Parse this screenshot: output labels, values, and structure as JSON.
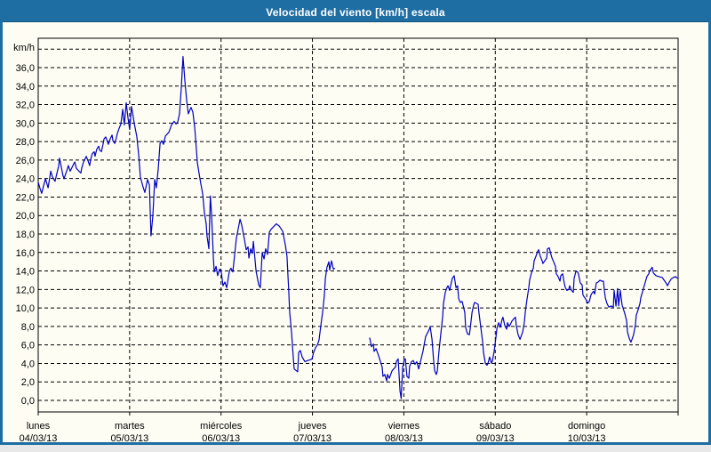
{
  "window": {
    "title": "Velocidad del viento [km/h] escala",
    "titlebar_color": "#1e6da3",
    "background_color": "#fdfdf4"
  },
  "chart_data": {
    "type": "line",
    "title": "Velocidad del viento [km/h] escala",
    "ylabel": "km/h",
    "series_name": "Velocidad del viento",
    "line_color": "#0000c0",
    "grid": true,
    "grid_style": "dashed-black",
    "legend_position": "none",
    "y_axis": {
      "ylim": [
        0,
        38
      ],
      "tick_step": 2,
      "tick_labels": [
        "0,0",
        "2,0",
        "4,0",
        "6,0",
        "8,0",
        "10,0",
        "12,0",
        "14,0",
        "16,0",
        "18,0",
        "20,0",
        "22,0",
        "24,0",
        "26,0",
        "28,0",
        "30,0",
        "32,0",
        "34,0",
        "36,0"
      ],
      "unit_label": "km/h"
    },
    "x_axis": {
      "hours_total": 168,
      "day_width_hours": 24,
      "days": [
        {
          "name": "lunes",
          "date": "04/03/13"
        },
        {
          "name": "martes",
          "date": "05/03/13"
        },
        {
          "name": "miércoles",
          "date": "06/03/13"
        },
        {
          "name": "jueves",
          "date": "07/03/13"
        },
        {
          "name": "viernes",
          "date": "08/03/13"
        },
        {
          "name": "sábado",
          "date": "09/03/13"
        },
        {
          "name": "domingo",
          "date": "10/03/13"
        }
      ]
    },
    "segments": [
      [
        [
          0,
          23.6
        ],
        [
          0.5,
          22.9
        ],
        [
          0.9,
          22.4
        ],
        [
          1.9,
          24
        ],
        [
          2.6,
          23
        ],
        [
          3.3,
          24.8
        ],
        [
          3.7,
          24.2
        ],
        [
          4.4,
          23.7
        ],
        [
          5.4,
          25.4
        ],
        [
          5.6,
          26.2
        ],
        [
          6.5,
          24.3
        ],
        [
          6.8,
          24
        ],
        [
          7.7,
          25.1
        ],
        [
          7.9,
          25.4
        ],
        [
          8.4,
          24.8
        ],
        [
          9.1,
          25.4
        ],
        [
          9.6,
          25.8
        ],
        [
          10,
          25.1
        ],
        [
          10.7,
          24.8
        ],
        [
          11.2,
          24.6
        ],
        [
          11.4,
          25.1
        ],
        [
          11.9,
          25.8
        ],
        [
          12.4,
          26.2
        ],
        [
          12.6,
          26.4
        ],
        [
          13.1,
          25.9
        ],
        [
          13.5,
          25.4
        ],
        [
          13.8,
          26.1
        ],
        [
          14.2,
          26.7
        ],
        [
          14.7,
          26.9
        ],
        [
          14.9,
          26.4
        ],
        [
          15.4,
          27.2
        ],
        [
          15.9,
          27.5
        ],
        [
          16.1,
          27.1
        ],
        [
          16.6,
          26.9
        ],
        [
          17,
          27.7
        ],
        [
          17.3,
          28.3
        ],
        [
          17.7,
          28.5
        ],
        [
          18.2,
          28
        ],
        [
          18.4,
          27.7
        ],
        [
          18.9,
          28.3
        ],
        [
          19.4,
          28.7
        ],
        [
          19.6,
          28.1
        ],
        [
          20.1,
          27.8
        ],
        [
          20.5,
          28.4
        ],
        [
          20.8,
          28.9
        ],
        [
          21.2,
          29.4
        ],
        [
          21.7,
          29.9
        ],
        [
          22.2,
          31.5
        ],
        [
          22.6,
          29.8
        ],
        [
          23.1,
          32.2
        ],
        [
          23.6,
          30.5
        ],
        [
          24,
          29.3
        ],
        [
          24.5,
          31.8
        ],
        [
          25.2,
          30
        ],
        [
          25.9,
          28.5
        ],
        [
          26.4,
          26.5
        ],
        [
          26.8,
          24.2
        ],
        [
          27.5,
          23.1
        ],
        [
          28,
          22.5
        ],
        [
          28.7,
          23.9
        ],
        [
          29.2,
          23.3
        ],
        [
          29.6,
          17.8
        ],
        [
          30.1,
          20
        ],
        [
          30.6,
          23.9
        ],
        [
          31,
          23
        ],
        [
          31.5,
          25
        ],
        [
          32,
          27.8
        ],
        [
          32.4,
          28.1
        ],
        [
          32.9,
          27.7
        ],
        [
          33.4,
          28.6
        ],
        [
          34.3,
          29
        ],
        [
          35,
          29.8
        ],
        [
          35.7,
          30.2
        ],
        [
          36.2,
          29.9
        ],
        [
          36.6,
          30.1
        ],
        [
          37.1,
          31
        ],
        [
          37.6,
          34
        ],
        [
          38,
          37.2
        ],
        [
          38.5,
          34.6
        ],
        [
          39,
          32.4
        ],
        [
          39.4,
          31
        ],
        [
          40.1,
          31.7
        ],
        [
          40.6,
          31.2
        ],
        [
          41.1,
          29.5
        ],
        [
          41.3,
          28.4
        ],
        [
          41.8,
          25.7
        ],
        [
          42.5,
          23.9
        ],
        [
          43.2,
          22.3
        ],
        [
          43.6,
          20.4
        ],
        [
          44.1,
          19.1
        ],
        [
          44.3,
          17.8
        ],
        [
          44.8,
          16.4
        ],
        [
          45.2,
          22.1
        ],
        [
          45.5,
          20.2
        ],
        [
          46,
          15.4
        ],
        [
          46.2,
          13.9
        ],
        [
          46.7,
          14.5
        ],
        [
          47.1,
          13.5
        ],
        [
          47.6,
          14.2
        ],
        [
          48.1,
          13.8
        ],
        [
          48.5,
          12.4
        ],
        [
          49,
          12.8
        ],
        [
          49.5,
          12.2
        ],
        [
          50.2,
          14
        ],
        [
          50.6,
          14.3
        ],
        [
          51.1,
          13.9
        ],
        [
          52,
          17.5
        ],
        [
          53,
          19.6
        ],
        [
          53.4,
          19
        ],
        [
          54.1,
          17.5
        ],
        [
          54.6,
          16.3
        ],
        [
          55.1,
          16.6
        ],
        [
          55.3,
          15.4
        ],
        [
          55.8,
          16.4
        ],
        [
          56.2,
          15.9
        ],
        [
          56.5,
          17.2
        ],
        [
          57.2,
          14
        ],
        [
          57.9,
          12.5
        ],
        [
          58.3,
          12.2
        ],
        [
          58.8,
          16
        ],
        [
          59.3,
          15.3
        ],
        [
          59.7,
          16.4
        ],
        [
          60.2,
          15.8
        ],
        [
          60.7,
          18.2
        ],
        [
          61.1,
          18.5
        ],
        [
          61.8,
          18.8
        ],
        [
          62.5,
          19.1
        ],
        [
          63.2,
          18.9
        ],
        [
          64.2,
          18.3
        ],
        [
          64.9,
          16.8
        ],
        [
          65.3,
          15.6
        ],
        [
          65.8,
          11.6
        ],
        [
          66,
          9.6
        ],
        [
          66.5,
          7.4
        ],
        [
          67,
          4.5
        ],
        [
          67.2,
          3.4
        ],
        [
          68.1,
          3.1
        ],
        [
          68.4,
          5.2
        ],
        [
          68.8,
          5.4
        ],
        [
          69.3,
          4.7
        ],
        [
          70,
          4.2
        ],
        [
          70.7,
          4.3
        ],
        [
          71.4,
          4.4
        ],
        [
          71.9,
          4.5
        ],
        [
          72.3,
          5.2
        ],
        [
          72.8,
          5.7
        ],
        [
          73.3,
          6
        ],
        [
          73.7,
          6.5
        ],
        [
          74.2,
          8.1
        ],
        [
          74.7,
          9.6
        ],
        [
          75.1,
          11.3
        ],
        [
          75.4,
          13.2
        ],
        [
          75.8,
          14.4
        ],
        [
          76.3,
          15
        ],
        [
          76.5,
          14.1
        ],
        [
          77,
          15.1
        ],
        [
          77.5,
          14.2
        ],
        [
          77.9,
          14.3
        ]
      ],
      [
        [
          87,
          6.8
        ],
        [
          87.5,
          5.8
        ],
        [
          88,
          6.1
        ],
        [
          88.2,
          5.3
        ],
        [
          88.7,
          5.6
        ],
        [
          89.4,
          4.8
        ],
        [
          90.3,
          3.6
        ],
        [
          90.5,
          2.6
        ],
        [
          91,
          2.8
        ],
        [
          91.5,
          2.1
        ],
        [
          91.7,
          2.8
        ],
        [
          92.2,
          2.4
        ],
        [
          92.9,
          3.2
        ],
        [
          93.3,
          3.4
        ],
        [
          93.8,
          3.6
        ],
        [
          94,
          4.2
        ],
        [
          94.5,
          4.5
        ],
        [
          95,
          1
        ],
        [
          95.3,
          0.2
        ],
        [
          95.7,
          3.6
        ],
        [
          96.1,
          4.4
        ],
        [
          96.4,
          4.5
        ],
        [
          96.8,
          2.6
        ],
        [
          97.3,
          2.4
        ],
        [
          97.5,
          3.7
        ],
        [
          98,
          4.2
        ],
        [
          98.5,
          4.3
        ],
        [
          98.9,
          3.9
        ],
        [
          99.4,
          4.2
        ],
        [
          99.9,
          3.4
        ],
        [
          101,
          5.3
        ],
        [
          101.7,
          6.9
        ],
        [
          102.7,
          7.7
        ],
        [
          102.9,
          8
        ],
        [
          103.4,
          6.6
        ],
        [
          103.8,
          4.3
        ],
        [
          104.1,
          3.2
        ],
        [
          104.5,
          2.8
        ],
        [
          104.8,
          3.2
        ],
        [
          105.2,
          5.3
        ],
        [
          105.7,
          7.2
        ],
        [
          106.2,
          9.1
        ],
        [
          106.4,
          10.5
        ],
        [
          106.9,
          11.7
        ],
        [
          107.3,
          12.2
        ],
        [
          107.6,
          12.4
        ],
        [
          108,
          11.9
        ],
        [
          108.7,
          13.2
        ],
        [
          109.2,
          13.5
        ],
        [
          109.7,
          12.2
        ],
        [
          110.1,
          12.4
        ],
        [
          110.4,
          11
        ],
        [
          110.8,
          10.6
        ],
        [
          111.3,
          10.7
        ],
        [
          112,
          9.5
        ],
        [
          112.2,
          7.9
        ],
        [
          112.7,
          7.2
        ],
        [
          113.2,
          7.1
        ],
        [
          113.4,
          7.7
        ],
        [
          113.9,
          9.5
        ],
        [
          114.3,
          10.3
        ],
        [
          114.6,
          10.6
        ],
        [
          115,
          10.5
        ],
        [
          115.5,
          10.4
        ],
        [
          115.7,
          9.5
        ],
        [
          116.2,
          7.9
        ],
        [
          116.7,
          6.3
        ],
        [
          116.9,
          5.2
        ],
        [
          117.4,
          4
        ],
        [
          117.8,
          3.8
        ],
        [
          118.1,
          4
        ],
        [
          118.5,
          4.7
        ],
        [
          119,
          4
        ],
        [
          119.2,
          4.2
        ],
        [
          119.7,
          5.3
        ],
        [
          120.2,
          6.9
        ],
        [
          120.4,
          7.7
        ],
        [
          120.6,
          8.1
        ],
        [
          120.9,
          8.4
        ],
        [
          121.3,
          7.9
        ],
        [
          121.8,
          8.8
        ],
        [
          122,
          9
        ],
        [
          122.5,
          8.1
        ],
        [
          123,
          7.7
        ],
        [
          123.2,
          8.4
        ],
        [
          123.7,
          8
        ],
        [
          124.4,
          8.6
        ],
        [
          124.8,
          8.8
        ],
        [
          125.3,
          9
        ],
        [
          125.5,
          8.1
        ],
        [
          126,
          7.1
        ],
        [
          126.5,
          6.6
        ],
        [
          127.2,
          7.4
        ],
        [
          127.6,
          8.4
        ],
        [
          127.9,
          9.6
        ],
        [
          128.3,
          10.9
        ],
        [
          128.8,
          12.2
        ],
        [
          129,
          13
        ],
        [
          129.5,
          13.8
        ],
        [
          130,
          14.3
        ],
        [
          130.2,
          15.1
        ],
        [
          130.7,
          15.6
        ],
        [
          131.1,
          16.1
        ],
        [
          131.4,
          16.3
        ],
        [
          131.8,
          15.6
        ],
        [
          132.3,
          15.1
        ],
        [
          132.5,
          14.8
        ],
        [
          133,
          15.1
        ],
        [
          133.5,
          15.4
        ],
        [
          133.7,
          16.4
        ],
        [
          134.2,
          16.5
        ],
        [
          134.6,
          15.8
        ],
        [
          134.9,
          15.4
        ],
        [
          135.3,
          15
        ],
        [
          135.8,
          14.5
        ],
        [
          136,
          13.7
        ],
        [
          136.5,
          13.4
        ],
        [
          137,
          12.9
        ],
        [
          137.2,
          13.5
        ],
        [
          137.7,
          13.7
        ],
        [
          138.1,
          12.7
        ],
        [
          138.4,
          12.2
        ],
        [
          138.8,
          11.9
        ],
        [
          139.3,
          12
        ],
        [
          139.5,
          12.4
        ],
        [
          140,
          11.9
        ],
        [
          140.5,
          11.7
        ],
        [
          140.7,
          13.2
        ],
        [
          141.2,
          14
        ],
        [
          141.6,
          13.9
        ],
        [
          141.9,
          13.6
        ],
        [
          142.3,
          12.7
        ],
        [
          142.8,
          12.5
        ],
        [
          143,
          11.4
        ],
        [
          143.5,
          11.1
        ],
        [
          144,
          10.8
        ],
        [
          144.2,
          10.5
        ],
        [
          144.7,
          10.7
        ],
        [
          145.1,
          11.4
        ],
        [
          145.4,
          11.6
        ],
        [
          145.8,
          11.8
        ],
        [
          146.1,
          11.5
        ],
        [
          146.5,
          12.7
        ],
        [
          147,
          12.8
        ],
        [
          147.5,
          13
        ],
        [
          147.9,
          12.9
        ],
        [
          148.4,
          12.9
        ],
        [
          148.6,
          12
        ],
        [
          148.9,
          11.1
        ],
        [
          149.3,
          10.5
        ],
        [
          149.8,
          10.1
        ],
        [
          150.5,
          10.2
        ],
        [
          151,
          10.1
        ],
        [
          151.2,
          11.9
        ],
        [
          151.7,
          10.2
        ],
        [
          152.1,
          12.1
        ],
        [
          152.4,
          10.2
        ],
        [
          152.8,
          11.9
        ],
        [
          153.3,
          10.3
        ],
        [
          154,
          9.4
        ],
        [
          154.5,
          8.6
        ],
        [
          154.7,
          7.4
        ],
        [
          155.2,
          6.7
        ],
        [
          155.6,
          6.3
        ],
        [
          155.9,
          6.6
        ],
        [
          156.3,
          7.1
        ],
        [
          156.8,
          8.2
        ],
        [
          157,
          9.2
        ],
        [
          157.5,
          9.8
        ],
        [
          158,
          10.5
        ],
        [
          158.2,
          11.1
        ],
        [
          158.7,
          11.8
        ],
        [
          159.1,
          12.4
        ],
        [
          159.4,
          12.8
        ],
        [
          159.8,
          13.4
        ],
        [
          160.3,
          13.7
        ],
        [
          160.5,
          14
        ],
        [
          161,
          14.3
        ],
        [
          161.2,
          14.4
        ],
        [
          161.5,
          13.8
        ],
        [
          161.7,
          13.7
        ],
        [
          162.2,
          13.5
        ],
        [
          162.9,
          13.4
        ],
        [
          163.8,
          13.3
        ],
        [
          164,
          13.2
        ],
        [
          164.5,
          12.9
        ],
        [
          165,
          12.6
        ],
        [
          165.2,
          12.4
        ],
        [
          165.7,
          12.8
        ],
        [
          166.1,
          13.1
        ],
        [
          166.4,
          13.2
        ],
        [
          166.8,
          13.3
        ],
        [
          167.3,
          13.4
        ],
        [
          167.5,
          13.3
        ],
        [
          168,
          13.2
        ]
      ]
    ]
  }
}
